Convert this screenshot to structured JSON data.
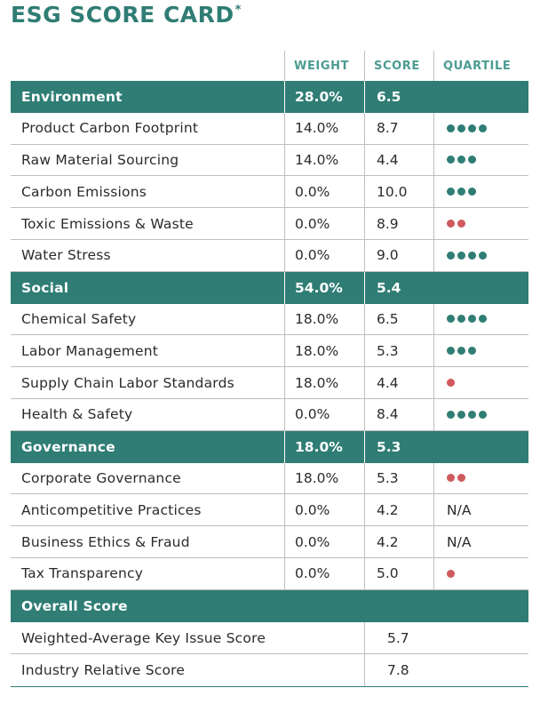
{
  "title": "ESG SCORE CARD",
  "title_mark": "*",
  "headers": {
    "weight": "WEIGHT",
    "score": "SCORE",
    "quartile": "QUARTILE"
  },
  "colors": {
    "accent": "#2f7d74",
    "dot_green": "#2f7d74",
    "dot_red": "#d05a5f"
  },
  "sections": [
    {
      "name": "Environment",
      "weight": "28.0%",
      "score": "6.5",
      "items": [
        {
          "label": "Product Carbon Footprint",
          "weight": "14.0%",
          "score": "8.7",
          "dots": 4,
          "dot_color": "green",
          "quartile_text": ""
        },
        {
          "label": "Raw Material Sourcing",
          "weight": "14.0%",
          "score": "4.4",
          "dots": 3,
          "dot_color": "green",
          "quartile_text": ""
        },
        {
          "label": "Carbon Emissions",
          "weight": "0.0%",
          "score": "10.0",
          "dots": 3,
          "dot_color": "green",
          "quartile_text": ""
        },
        {
          "label": "Toxic Emissions & Waste",
          "weight": "0.0%",
          "score": "8.9",
          "dots": 2,
          "dot_color": "red",
          "quartile_text": ""
        },
        {
          "label": "Water Stress",
          "weight": "0.0%",
          "score": "9.0",
          "dots": 4,
          "dot_color": "green",
          "quartile_text": ""
        }
      ]
    },
    {
      "name": "Social",
      "weight": "54.0%",
      "score": "5.4",
      "items": [
        {
          "label": "Chemical Safety",
          "weight": "18.0%",
          "score": "6.5",
          "dots": 4,
          "dot_color": "green",
          "quartile_text": ""
        },
        {
          "label": "Labor Management",
          "weight": "18.0%",
          "score": "5.3",
          "dots": 3,
          "dot_color": "green",
          "quartile_text": ""
        },
        {
          "label": "Supply Chain Labor Standards",
          "weight": "18.0%",
          "score": "4.4",
          "dots": 1,
          "dot_color": "red",
          "quartile_text": ""
        },
        {
          "label": "Health & Safety",
          "weight": "0.0%",
          "score": "8.4",
          "dots": 4,
          "dot_color": "green",
          "quartile_text": ""
        }
      ]
    },
    {
      "name": "Governance",
      "weight": "18.0%",
      "score": "5.3",
      "items": [
        {
          "label": "Corporate Governance",
          "weight": "18.0%",
          "score": "5.3",
          "dots": 2,
          "dot_color": "red",
          "quartile_text": ""
        },
        {
          "label": "Anticompetitive Practices",
          "weight": "0.0%",
          "score": "4.2",
          "dots": 0,
          "dot_color": "",
          "quartile_text": "N/A"
        },
        {
          "label": "Business Ethics & Fraud",
          "weight": "0.0%",
          "score": "4.2",
          "dots": 0,
          "dot_color": "",
          "quartile_text": "N/A"
        },
        {
          "label": "Tax Transparency",
          "weight": "0.0%",
          "score": "5.0",
          "dots": 1,
          "dot_color": "red",
          "quartile_text": ""
        }
      ]
    }
  ],
  "overall": {
    "name": "Overall Score",
    "rows": [
      {
        "label": "Weighted-Average Key Issue Score",
        "score": "5.7"
      },
      {
        "label": "Industry Relative Score",
        "score": "7.8"
      }
    ]
  }
}
